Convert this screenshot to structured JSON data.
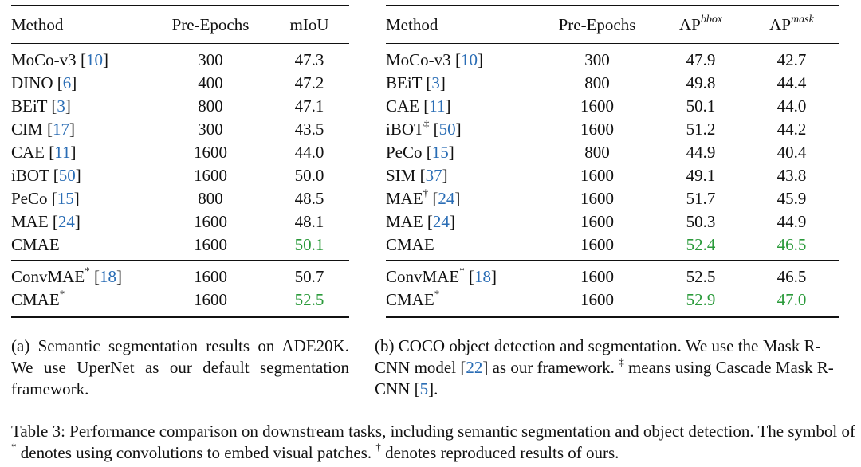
{
  "table_a": {
    "headers": [
      "Method",
      "Pre-Epochs",
      "mIoU"
    ],
    "rows": [
      {
        "method": "MoCo-v3",
        "ref": "10",
        "epochs": "300",
        "miou": "47.3"
      },
      {
        "method": "DINO",
        "ref": "6",
        "epochs": "400",
        "miou": "47.2"
      },
      {
        "method": "BEiT",
        "ref": "3",
        "epochs": "800",
        "miou": "47.1"
      },
      {
        "method": "CIM",
        "ref": "17",
        "epochs": "300",
        "miou": "43.5"
      },
      {
        "method": "CAE",
        "ref": "11",
        "epochs": "1600",
        "miou": "44.0"
      },
      {
        "method": "iBOT",
        "ref": "50",
        "epochs": "1600",
        "miou": "50.0"
      },
      {
        "method": "PeCo",
        "ref": "15",
        "epochs": "800",
        "miou": "48.5"
      },
      {
        "method": "MAE",
        "ref": "24",
        "epochs": "1600",
        "miou": "48.1"
      },
      {
        "method": "CMAE",
        "epochs": "1600",
        "miou": "50.1"
      }
    ],
    "conv_rows": [
      {
        "method": "ConvMAE",
        "sup": "*",
        "ref": "18",
        "epochs": "1600",
        "miou": "50.7"
      },
      {
        "method": "CMAE",
        "sup": "*",
        "epochs": "1600",
        "miou": "52.5"
      }
    ],
    "caption": "(a) Semantic segmentation results on ADE20K. We use UperNet as our default segmentation framework."
  },
  "table_b": {
    "headers": {
      "method": "Method",
      "epochs": "Pre-Epochs",
      "ap_prefix": "AP",
      "bbox_sup": "bbox",
      "mask_sup": "mask"
    },
    "rows": [
      {
        "method": "MoCo-v3",
        "ref": "10",
        "epochs": "300",
        "ap_bbox": "47.9",
        "ap_mask": "42.7"
      },
      {
        "method": "BEiT",
        "ref": "3",
        "epochs": "800",
        "ap_bbox": "49.8",
        "ap_mask": "44.4"
      },
      {
        "method": "CAE",
        "ref": "11",
        "epochs": "1600",
        "ap_bbox": "50.1",
        "ap_mask": "44.0"
      },
      {
        "method": "iBOT",
        "sup": "‡",
        "ref": "50",
        "epochs": "1600",
        "ap_bbox": "51.2",
        "ap_mask": "44.2"
      },
      {
        "method": "PeCo",
        "ref": "15",
        "epochs": "800",
        "ap_bbox": "44.9",
        "ap_mask": "40.4"
      },
      {
        "method": "SIM",
        "ref": "37",
        "epochs": "1600",
        "ap_bbox": "49.1",
        "ap_mask": "43.8"
      },
      {
        "method": "MAE",
        "sup": "†",
        "ref": "24",
        "epochs": "1600",
        "ap_bbox": "51.7",
        "ap_mask": "45.9"
      },
      {
        "method": "MAE",
        "ref": "24",
        "epochs": "1600",
        "ap_bbox": "50.3",
        "ap_mask": "44.9"
      },
      {
        "method": "CMAE",
        "epochs": "1600",
        "ap_bbox": "52.4",
        "ap_mask": "46.5"
      }
    ],
    "conv_rows": [
      {
        "method": "ConvMAE",
        "sup": "*",
        "ref": "18",
        "epochs": "1600",
        "ap_bbox": "52.5",
        "ap_mask": "46.5"
      },
      {
        "method": "CMAE",
        "sup": "*",
        "epochs": "1600",
        "ap_bbox": "52.9",
        "ap_mask": "47.0"
      }
    ],
    "caption": {
      "part1": "(b) COCO object detection and segmentation. We use the Mask R-CNN model [",
      "ref1": "22",
      "part2": "] as our framework. ",
      "sym": "‡",
      "part3": " means using Cascade Mask R-CNN [",
      "ref2": "5",
      "part4": "]."
    }
  },
  "main_caption": {
    "part1": "Table 3: Performance comparison on downstream tasks, including semantic segmentation and object detection. The symbol of ",
    "sym1": "*",
    "part2": " denotes using convolutions to embed visual patches. ",
    "sym2": "†",
    "part3": " denotes reproduced results of ours."
  },
  "colors": {
    "ref": "#2a6db5",
    "best": "#2a9a3a"
  }
}
